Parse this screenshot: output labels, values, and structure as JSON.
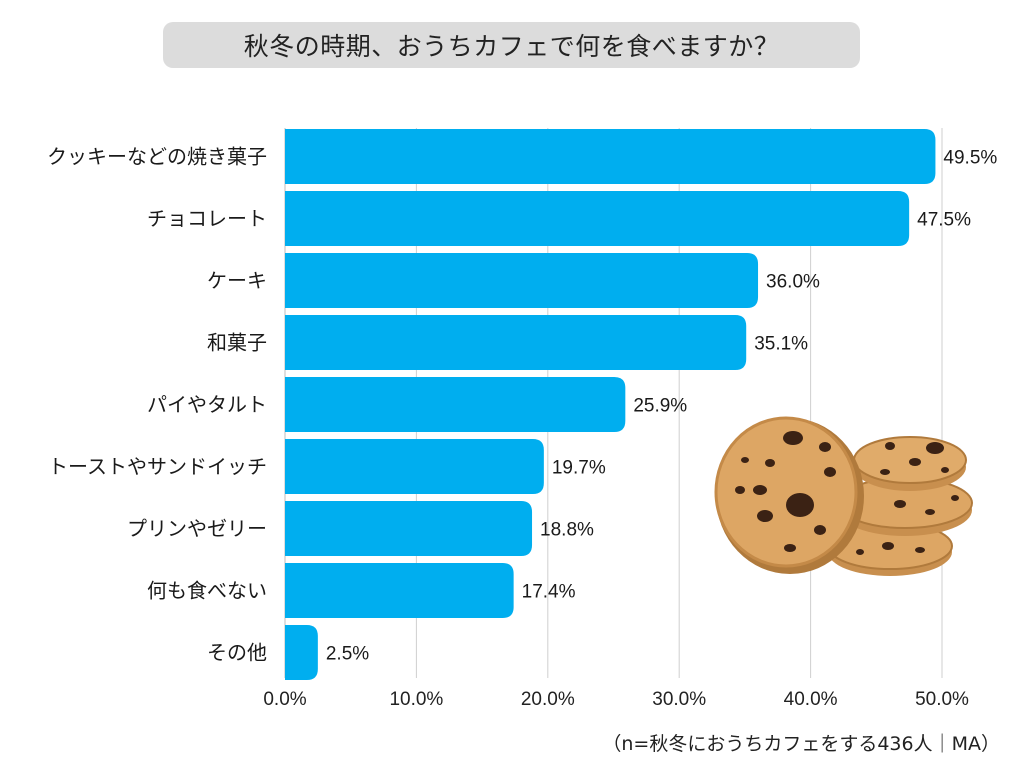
{
  "chart_data": {
    "type": "bar",
    "orientation": "horizontal",
    "title": "秋冬の時期、おうちカフェで何を食べますか？",
    "categories": [
      "クッキーなどの焼き菓子",
      "チョコレート",
      "ケーキ",
      "和菓子",
      "パイやタルト",
      "トーストやサンドイッチ",
      "プリンやゼリー",
      "何も食べない",
      "その他"
    ],
    "values": [
      49.5,
      47.5,
      36.0,
      35.1,
      25.9,
      19.7,
      18.8,
      17.4,
      2.5
    ],
    "value_labels": [
      "49.5%",
      "47.5%",
      "36.0%",
      "35.1%",
      "25.9%",
      "19.7%",
      "18.8%",
      "17.4%",
      "2.5%"
    ],
    "xlim": [
      0,
      50
    ],
    "xticks": [
      0,
      10,
      20,
      30,
      40,
      50
    ],
    "xtick_labels": [
      "0.0%",
      "10.0%",
      "20.0%",
      "30.0%",
      "40.0%",
      "50.0%"
    ],
    "grid": true,
    "note": "（n=秋冬におうちカフェをする436人｜MA）"
  },
  "colors": {
    "bar": "#00AEEF",
    "grid": "#cfcfcf",
    "title_bg": "#dcdcdc",
    "cookie_base": "#d9a25e",
    "cookie_edge": "#b07a3c",
    "chip": "#3b2214"
  },
  "illustration": {
    "icon": "cookies-stack-icon"
  }
}
